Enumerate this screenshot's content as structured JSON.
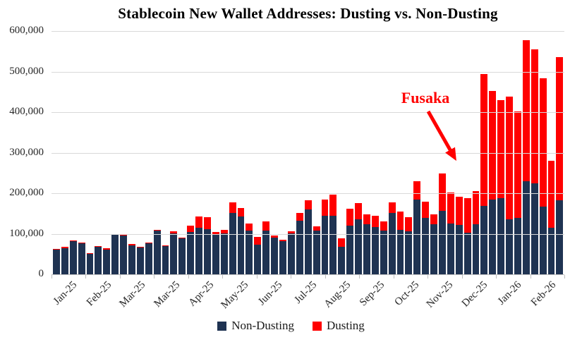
{
  "title": "Stablecoin New Wallet Addresses: Dusting vs. Non-Dusting",
  "annotation": {
    "label": "Fusaka",
    "color": "#ff0000"
  },
  "legend": {
    "items": [
      {
        "label": "Non-Dusting",
        "color": "#1f3352"
      },
      {
        "label": "Dusting",
        "color": "#ff0000"
      }
    ]
  },
  "chart_data": {
    "type": "bar",
    "stacked": true,
    "title": "Stablecoin New Wallet Addresses: Dusting vs. Non-Dusting",
    "x_tick_labels": [
      "Jan-25",
      "Feb-25",
      "Mar-25",
      "Mar-25",
      "Apr-25",
      "May-25",
      "Jun-25",
      "Jul-25",
      "Aug-25",
      "Sep-25",
      "Oct-25",
      "Nov-25",
      "Dec-25",
      "Jan-26",
      "Feb-26"
    ],
    "y_tick_labels": [
      "0",
      "100,000",
      "200,000",
      "300,000",
      "400,000",
      "500,000",
      "600,000"
    ],
    "ylim": [
      0,
      600000
    ],
    "grid": true,
    "legend_position": "bottom",
    "series": [
      {
        "name": "Non-Dusting",
        "color": "#1f3352",
        "values": [
          61000,
          64000,
          81000,
          76000,
          51000,
          68000,
          61000,
          97000,
          96000,
          72000,
          66000,
          76000,
          107000,
          70000,
          101000,
          88000,
          104000,
          115000,
          111000,
          100000,
          101000,
          151000,
          143000,
          107000,
          73000,
          108000,
          90000,
          81000,
          101000,
          132000,
          160000,
          108000,
          145000,
          145000,
          68000,
          120000,
          136000,
          124000,
          116000,
          108000,
          151000,
          110000,
          106000,
          184000,
          139000,
          124000,
          156000,
          125000,
          121000,
          103000,
          123000,
          168000,
          184000,
          187000,
          136000,
          139000,
          230000,
          224000,
          167000,
          115000,
          182000
        ]
      },
      {
        "name": "Dusting",
        "color": "#ff0000",
        "values": [
          2000,
          3000,
          3000,
          3000,
          2000,
          2000,
          3000,
          2000,
          2000,
          2000,
          2000,
          2000,
          3000,
          2000,
          5000,
          3000,
          16000,
          28000,
          30000,
          5000,
          8000,
          26000,
          20000,
          19000,
          20000,
          23000,
          6000,
          4000,
          6000,
          19000,
          23000,
          10000,
          40000,
          51000,
          20000,
          42000,
          39000,
          24000,
          28000,
          22000,
          26000,
          45000,
          35000,
          46000,
          41000,
          24000,
          93000,
          76000,
          71000,
          84000,
          83000,
          326000,
          269000,
          243000,
          302000,
          262000,
          348000,
          330000,
          316000,
          165000,
          353000
        ]
      }
    ],
    "annotation": {
      "text": "Fusaka",
      "color": "#ff0000",
      "target_bar_index": 46
    }
  }
}
